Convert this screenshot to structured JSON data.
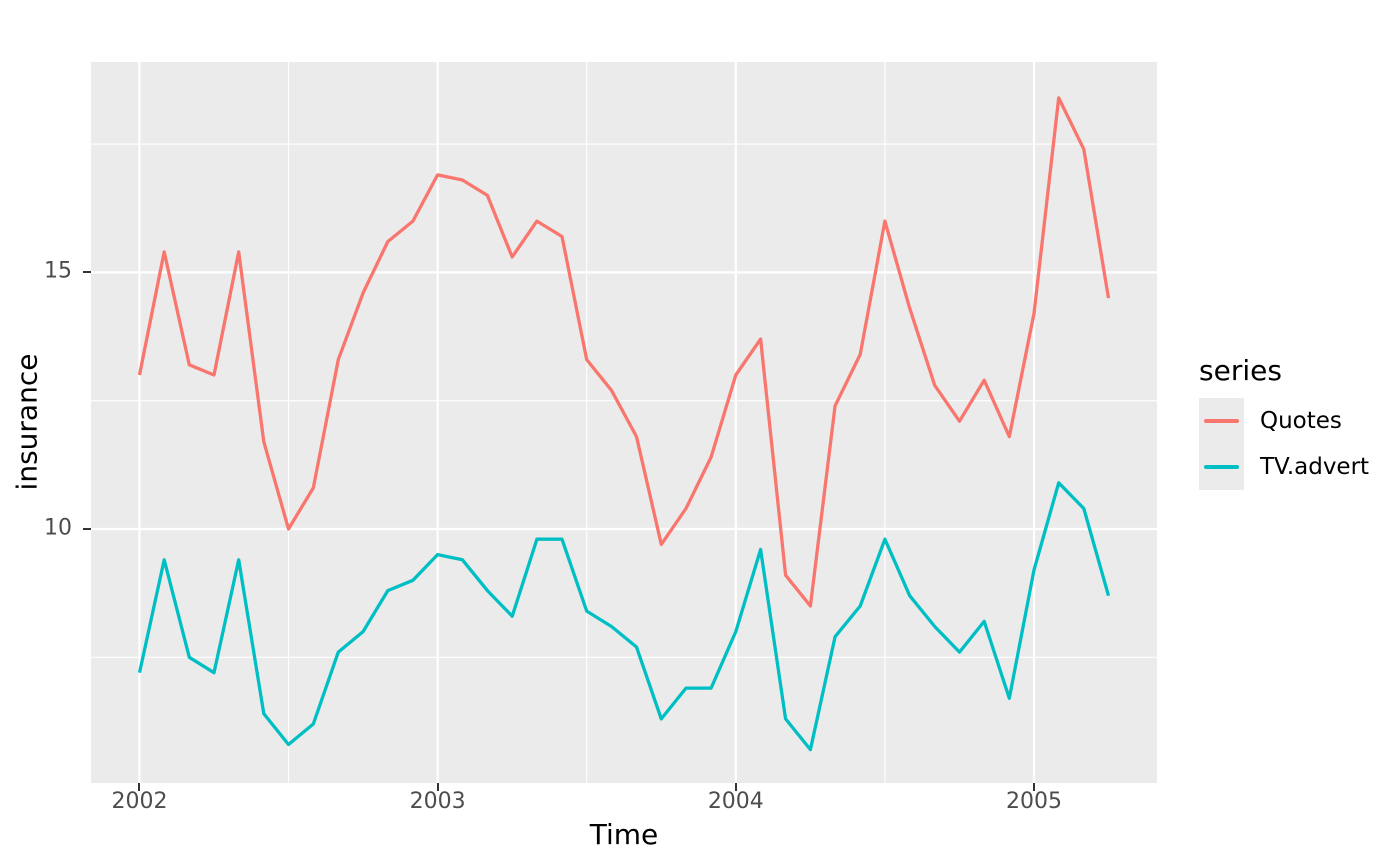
{
  "figure": {
    "background": "#FFFFFF",
    "panel_background": "#EBEBEB",
    "gridline_color": "#FFFFFF",
    "tick_mark_color": "#333333",
    "tick_label_color": "#4D4D4D",
    "text_color": "#000000"
  },
  "chart_data": {
    "type": "line",
    "title": "",
    "xlabel": "Time",
    "ylabel": "insurance",
    "legend_title": "series",
    "legend_position": "right",
    "grid": true,
    "x_range": [
      2001.8375,
      2005.4125
    ],
    "y_range": [
      5.05,
      19.1
    ],
    "x_ticks": [
      {
        "value": 2002,
        "label": "2002"
      },
      {
        "value": 2003,
        "label": "2003"
      },
      {
        "value": 2004,
        "label": "2004"
      },
      {
        "value": 2005,
        "label": "2005"
      }
    ],
    "y_ticks": [
      {
        "value": 10,
        "label": "10"
      },
      {
        "value": 15,
        "label": "15"
      }
    ],
    "x_minor": [
      2002.5,
      2003.5,
      2004.5
    ],
    "y_minor": [
      7.5,
      12.5,
      17.5
    ],
    "x": [
      2002.0,
      2002.083,
      2002.167,
      2002.25,
      2002.333,
      2002.417,
      2002.5,
      2002.583,
      2002.667,
      2002.75,
      2002.833,
      2002.917,
      2003.0,
      2003.083,
      2003.167,
      2003.25,
      2003.333,
      2003.417,
      2003.5,
      2003.583,
      2003.667,
      2003.75,
      2003.833,
      2003.917,
      2004.0,
      2004.083,
      2004.167,
      2004.25,
      2004.333,
      2004.417,
      2004.5,
      2004.583,
      2004.667,
      2004.75,
      2004.833,
      2004.917,
      2005.0,
      2005.083,
      2005.167,
      2005.25
    ],
    "series": [
      {
        "name": "Quotes",
        "color": "#F8766D",
        "values": [
          13.0,
          15.4,
          13.2,
          13.0,
          15.4,
          11.7,
          10.0,
          10.8,
          13.3,
          14.6,
          15.6,
          16.0,
          16.9,
          16.8,
          16.5,
          15.3,
          16.0,
          15.7,
          13.3,
          12.7,
          11.8,
          9.7,
          10.4,
          11.4,
          13.0,
          13.7,
          9.1,
          8.5,
          12.4,
          13.4,
          16.0,
          14.3,
          12.8,
          12.1,
          12.9,
          11.8,
          14.2,
          18.4,
          17.4,
          14.5
        ]
      },
      {
        "name": "TV.advert",
        "color": "#00BFC4",
        "values": [
          7.2,
          9.4,
          7.5,
          7.2,
          9.4,
          6.4,
          5.8,
          6.2,
          7.6,
          8.0,
          8.8,
          9.0,
          9.5,
          9.4,
          8.8,
          8.3,
          9.8,
          9.8,
          8.4,
          8.1,
          7.7,
          6.3,
          6.9,
          6.9,
          8.0,
          9.6,
          6.3,
          5.7,
          7.9,
          8.5,
          9.8,
          8.7,
          8.1,
          7.6,
          8.2,
          6.7,
          9.2,
          10.9,
          10.4,
          8.7
        ]
      }
    ]
  }
}
